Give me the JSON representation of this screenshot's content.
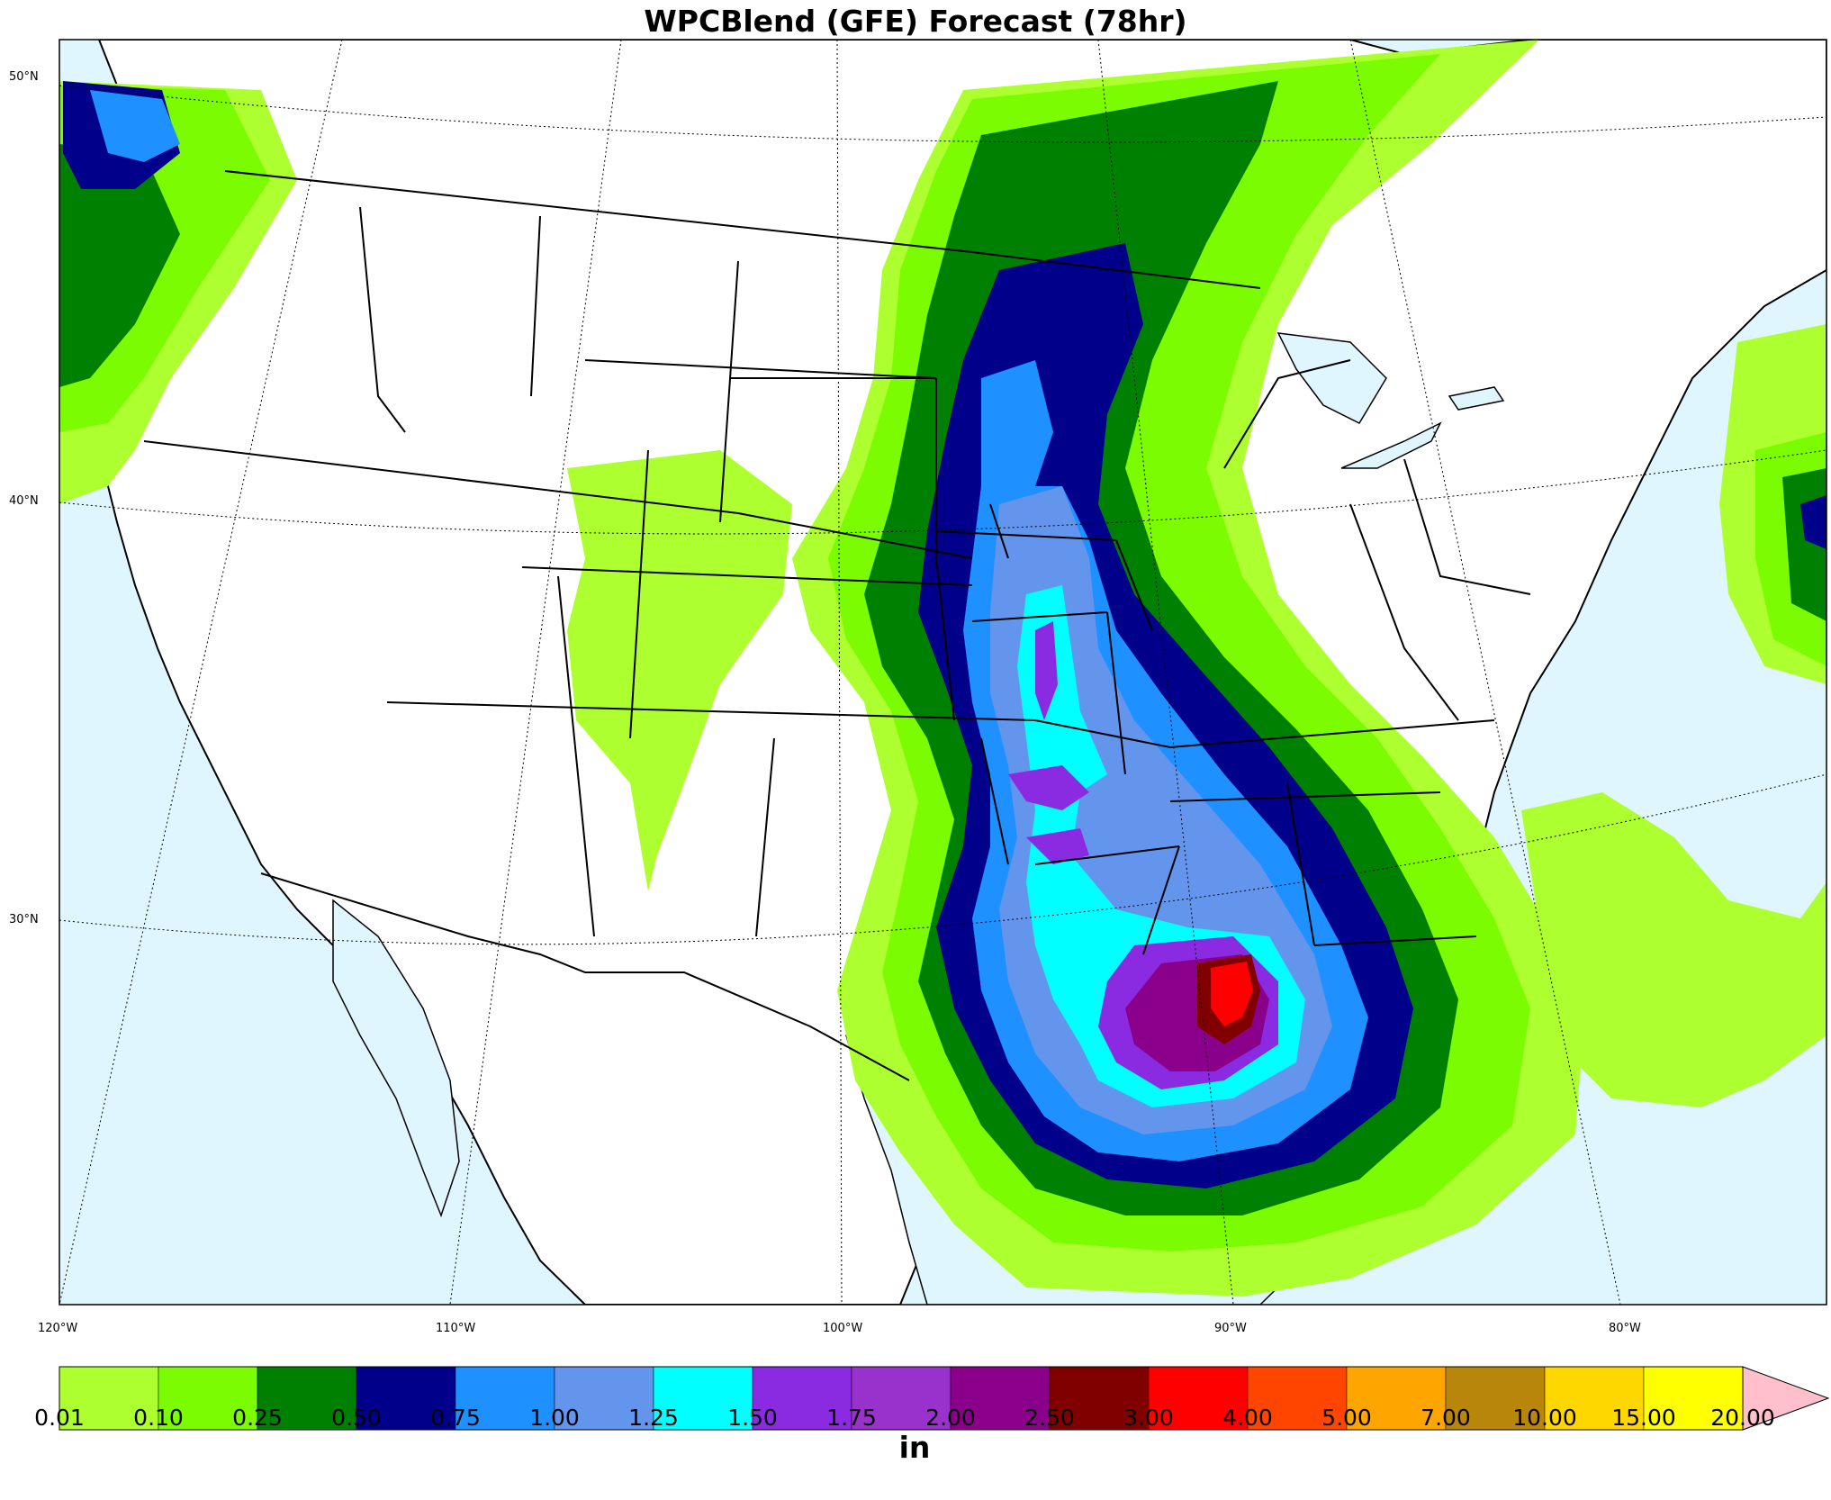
{
  "title": "WPCBlend (GFE) Forecast (78hr)",
  "lat_labels": [
    "50°N",
    "40°N",
    "30°N"
  ],
  "lon_labels": [
    "120°W",
    "110°W",
    "100°W",
    "90°W",
    "80°W"
  ],
  "colorbar": {
    "unit": "in",
    "ticks": [
      "0.01",
      "0.10",
      "0.25",
      "0.50",
      "0.75",
      "1.00",
      "1.25",
      "1.50",
      "1.75",
      "2.00",
      "2.50",
      "3.00",
      "4.00",
      "5.00",
      "7.00",
      "10.00",
      "15.00",
      "20.00"
    ],
    "colors": [
      "#adff2f",
      "#7cfc00",
      "#008000",
      "#00008b",
      "#1e90ff",
      "#6495ed",
      "#00ffff",
      "#8a2be2",
      "#9932cc",
      "#8b008b",
      "#800000",
      "#ff0000",
      "#ff4500",
      "#ffa500",
      "#b8860b",
      "#ffd700",
      "#ffff00"
    ],
    "extend_color": "#ffc0cb"
  },
  "legend_levels": {
    "ocean": "#e0f6ff",
    "land": "#ffffff"
  }
}
